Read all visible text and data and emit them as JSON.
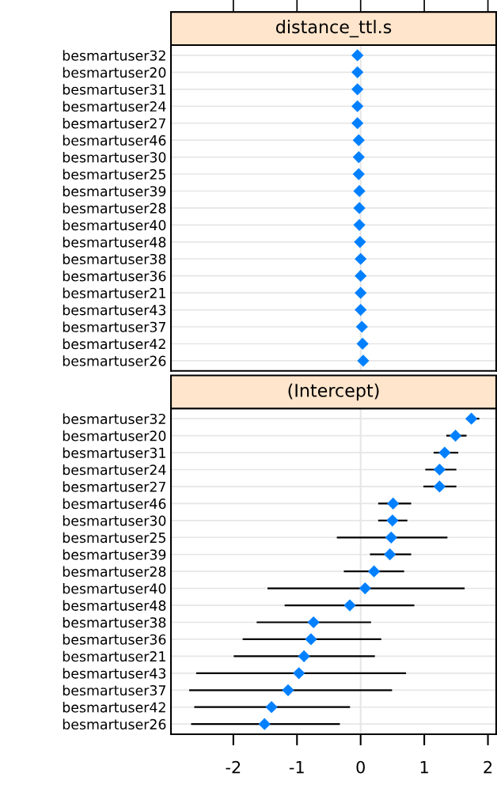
{
  "chart_data": [
    {
      "type": "scatter",
      "title": "distance_ttl.s",
      "categories": [
        "besmartuser32",
        "besmartuser20",
        "besmartuser31",
        "besmartuser24",
        "besmartuser27",
        "besmartuser46",
        "besmartuser30",
        "besmartuser25",
        "besmartuser39",
        "besmartuser28",
        "besmartuser40",
        "besmartuser48",
        "besmartuser38",
        "besmartuser36",
        "besmartuser21",
        "besmartuser43",
        "besmartuser37",
        "besmartuser42",
        "besmartuser26"
      ],
      "values": [
        -0.05,
        -0.05,
        -0.05,
        -0.05,
        -0.05,
        -0.03,
        -0.03,
        -0.03,
        -0.02,
        -0.02,
        -0.02,
        -0.01,
        0.0,
        0.0,
        0.0,
        0.0,
        0.02,
        0.03,
        0.04
      ],
      "color": "#0080ff",
      "marker": "diamond",
      "orientation": "horizontal",
      "xlim": [
        -2.98,
        2.13
      ],
      "xticks": [
        {
          "value": -2,
          "label": null
        },
        {
          "value": -1,
          "label": null
        },
        {
          "value": 0,
          "label": null
        },
        {
          "value": 1,
          "label": null
        },
        {
          "value": 2,
          "label": null
        }
      ],
      "tick_labels": "y",
      "grid": "y",
      "ref_lines": [
        {
          "axis": "x",
          "value": 0,
          "color": "#e6e6e6"
        }
      ]
    },
    {
      "type": "scatter",
      "title": "(Intercept)",
      "categories": [
        "besmartuser32",
        "besmartuser20",
        "besmartuser31",
        "besmartuser24",
        "besmartuser27",
        "besmartuser46",
        "besmartuser30",
        "besmartuser25",
        "besmartuser39",
        "besmartuser28",
        "besmartuser40",
        "besmartuser48",
        "besmartuser38",
        "besmartuser36",
        "besmartuser21",
        "besmartuser43",
        "besmartuser37",
        "besmartuser42",
        "besmartuser26"
      ],
      "values": [
        1.74,
        1.49,
        1.32,
        1.24,
        1.24,
        0.51,
        0.5,
        0.48,
        0.46,
        0.21,
        0.07,
        -0.17,
        -0.74,
        -0.78,
        -0.89,
        -0.97,
        -1.14,
        -1.4,
        -1.51
      ],
      "errors": [
        [
          1.67,
          1.85
        ],
        [
          1.36,
          1.65
        ],
        [
          1.16,
          1.52
        ],
        [
          1.03,
          1.49
        ],
        [
          1.0,
          1.49
        ],
        [
          0.29,
          0.78
        ],
        [
          0.29,
          0.72
        ],
        [
          -0.36,
          1.35
        ],
        [
          0.16,
          0.78
        ],
        [
          -0.25,
          0.67
        ],
        [
          -1.45,
          1.62
        ],
        [
          -1.18,
          0.83
        ],
        [
          -1.62,
          0.15
        ],
        [
          -1.84,
          0.31
        ],
        [
          -1.98,
          0.21
        ],
        [
          -2.57,
          0.7
        ],
        [
          -2.68,
          0.48
        ],
        [
          -2.6,
          -0.18
        ],
        [
          -2.65,
          -0.34
        ]
      ],
      "color": "#0080ff",
      "marker": "diamond",
      "orientation": "horizontal",
      "xlim": [
        -2.98,
        2.13
      ],
      "xticks": [
        -2,
        -1,
        0,
        1,
        2
      ],
      "grid": "y",
      "ref_lines": [
        {
          "axis": "x",
          "value": 0,
          "color": "#e6e6e6"
        }
      ]
    }
  ]
}
